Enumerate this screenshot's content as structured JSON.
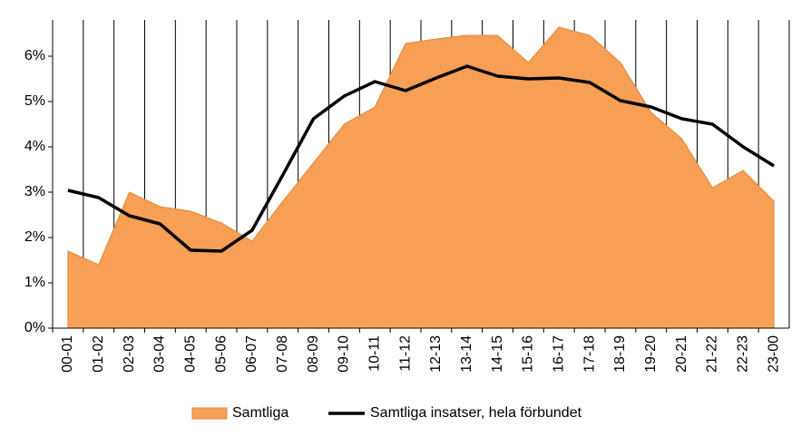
{
  "chart_data": {
    "type": "area-line",
    "categories": [
      "00-01",
      "01-02",
      "02-03",
      "03-04",
      "04-05",
      "05-06",
      "06-07",
      "07-08",
      "08-09",
      "09-10",
      "10-11",
      "11-12",
      "12-13",
      "13-14",
      "14-15",
      "15-16",
      "16-17",
      "17-18",
      "18-19",
      "19-20",
      "20-21",
      "21-22",
      "22-23",
      "23-00"
    ],
    "series": [
      {
        "name": "Samtliga",
        "type": "area",
        "color": "#f79f55",
        "values": [
          1.7,
          1.4,
          3.0,
          2.68,
          2.58,
          2.32,
          1.92,
          2.8,
          3.65,
          4.5,
          4.88,
          6.28,
          6.38,
          6.46,
          6.46,
          5.86,
          6.64,
          6.46,
          5.86,
          4.76,
          4.18,
          3.1,
          3.48,
          2.8
        ]
      },
      {
        "name": "Samtliga insatser, hela förbundet",
        "type": "line",
        "color": "#000000",
        "values": [
          3.04,
          2.88,
          2.48,
          2.3,
          1.72,
          1.7,
          2.16,
          3.38,
          4.62,
          5.12,
          5.44,
          5.24,
          5.52,
          5.78,
          5.56,
          5.5,
          5.52,
          5.42,
          5.02,
          4.88,
          4.62,
          4.5,
          4.0,
          3.58
        ]
      }
    ],
    "ylim": [
      0,
      6.8
    ],
    "yticks": [
      {
        "value": 0,
        "label": "0%"
      },
      {
        "value": 1,
        "label": "1%"
      },
      {
        "value": 2,
        "label": "2%"
      },
      {
        "value": 3,
        "label": "3%"
      },
      {
        "value": 4,
        "label": "4%"
      },
      {
        "value": 5,
        "label": "5%"
      },
      {
        "value": 6,
        "label": "6%"
      }
    ]
  }
}
